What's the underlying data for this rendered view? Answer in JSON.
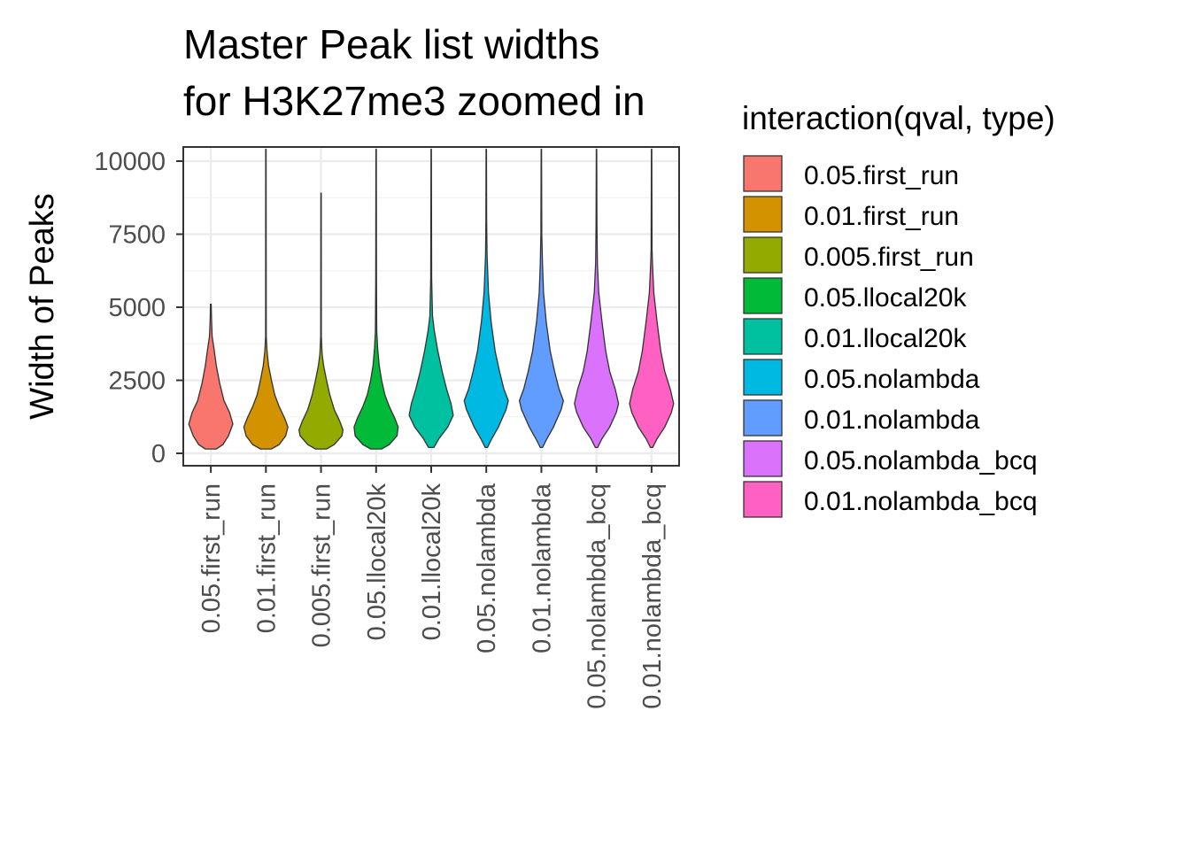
{
  "chart_data": {
    "type": "violin",
    "title_lines": [
      "Master Peak list widths",
      "for H3K27me3 zoomed in"
    ],
    "xlabel": "",
    "ylabel": "Width of Peaks",
    "ylim": [
      -500,
      10500
    ],
    "yticks": [
      0,
      2500,
      5000,
      7500,
      10000
    ],
    "ytick_labels": [
      "0",
      "2500",
      "5000",
      "7500",
      "10000"
    ],
    "grid": true,
    "legend": {
      "title": "interaction(qval, type)",
      "position": "right"
    },
    "categories": [
      "0.05.first_run",
      "0.01.first_run",
      "0.005.first_run",
      "0.05.llocal20k",
      "0.01.llocal20k",
      "0.05.nolambda",
      "0.01.nolambda",
      "0.05.nolambda_bcq",
      "0.01.nolambda_bcq"
    ],
    "series": [
      {
        "name": "0.05.first_run",
        "color": "#F8766D",
        "min": 150,
        "max": 5100,
        "profile": [
          [
            150,
            0.25
          ],
          [
            300,
            0.55
          ],
          [
            600,
            0.8
          ],
          [
            1000,
            1.0
          ],
          [
            1400,
            0.85
          ],
          [
            1800,
            0.6
          ],
          [
            2400,
            0.4
          ],
          [
            3000,
            0.25
          ],
          [
            3600,
            0.14
          ],
          [
            4000,
            0.06
          ],
          [
            4600,
            0.03
          ],
          [
            5100,
            0.015
          ]
        ]
      },
      {
        "name": "0.01.first_run",
        "color": "#D39200",
        "min": 150,
        "max": 10400,
        "profile": [
          [
            150,
            0.25
          ],
          [
            300,
            0.6
          ],
          [
            600,
            0.9
          ],
          [
            900,
            1.0
          ],
          [
            1200,
            0.85
          ],
          [
            1600,
            0.6
          ],
          [
            2000,
            0.4
          ],
          [
            2500,
            0.25
          ],
          [
            3000,
            0.12
          ],
          [
            3500,
            0.05
          ],
          [
            4000,
            0.015
          ],
          [
            10400,
            0.008
          ]
        ]
      },
      {
        "name": "0.005.first_run",
        "color": "#93AA00",
        "min": 150,
        "max": 8900,
        "profile": [
          [
            150,
            0.25
          ],
          [
            300,
            0.6
          ],
          [
            600,
            0.95
          ],
          [
            800,
            1.0
          ],
          [
            1100,
            0.85
          ],
          [
            1500,
            0.6
          ],
          [
            2000,
            0.4
          ],
          [
            2500,
            0.25
          ],
          [
            3000,
            0.12
          ],
          [
            3400,
            0.05
          ],
          [
            4000,
            0.015
          ],
          [
            8900,
            0.008
          ]
        ]
      },
      {
        "name": "0.05.llocal20k",
        "color": "#00BA38",
        "min": 150,
        "max": 10400,
        "profile": [
          [
            150,
            0.25
          ],
          [
            300,
            0.6
          ],
          [
            600,
            0.95
          ],
          [
            900,
            1.0
          ],
          [
            1200,
            0.85
          ],
          [
            1600,
            0.6
          ],
          [
            2000,
            0.4
          ],
          [
            2500,
            0.25
          ],
          [
            3000,
            0.14
          ],
          [
            3600,
            0.07
          ],
          [
            4200,
            0.03
          ],
          [
            6000,
            0.015
          ],
          [
            10400,
            0.008
          ]
        ]
      },
      {
        "name": "0.01.llocal20k",
        "color": "#00C19F",
        "min": 200,
        "max": 10400,
        "profile": [
          [
            200,
            0.12
          ],
          [
            500,
            0.35
          ],
          [
            900,
            0.75
          ],
          [
            1300,
            1.0
          ],
          [
            1700,
            0.9
          ],
          [
            2200,
            0.7
          ],
          [
            2800,
            0.5
          ],
          [
            3500,
            0.3
          ],
          [
            4200,
            0.14
          ],
          [
            4700,
            0.06
          ],
          [
            6000,
            0.02
          ],
          [
            10400,
            0.008
          ]
        ]
      },
      {
        "name": "0.05.nolambda",
        "color": "#00B9E3",
        "min": 200,
        "max": 10400,
        "profile": [
          [
            200,
            0.05
          ],
          [
            500,
            0.25
          ],
          [
            900,
            0.55
          ],
          [
            1500,
            0.9
          ],
          [
            1800,
            1.0
          ],
          [
            2200,
            0.8
          ],
          [
            2800,
            0.6
          ],
          [
            3500,
            0.4
          ],
          [
            4500,
            0.22
          ],
          [
            5500,
            0.1
          ],
          [
            6800,
            0.035
          ],
          [
            8000,
            0.015
          ],
          [
            10400,
            0.008
          ]
        ]
      },
      {
        "name": "0.01.nolambda",
        "color": "#619CFF",
        "min": 200,
        "max": 10400,
        "profile": [
          [
            200,
            0.05
          ],
          [
            500,
            0.25
          ],
          [
            900,
            0.55
          ],
          [
            1500,
            0.9
          ],
          [
            1800,
            1.0
          ],
          [
            2200,
            0.8
          ],
          [
            2800,
            0.6
          ],
          [
            3500,
            0.4
          ],
          [
            4500,
            0.22
          ],
          [
            5500,
            0.1
          ],
          [
            6500,
            0.05
          ],
          [
            7500,
            0.02
          ],
          [
            10400,
            0.008
          ]
        ]
      },
      {
        "name": "0.05.nolambda_bcq",
        "color": "#DB72FB",
        "min": 200,
        "max": 10400,
        "profile": [
          [
            200,
            0.05
          ],
          [
            500,
            0.25
          ],
          [
            900,
            0.6
          ],
          [
            1400,
            0.9
          ],
          [
            1700,
            1.0
          ],
          [
            2200,
            0.85
          ],
          [
            2800,
            0.6
          ],
          [
            3500,
            0.42
          ],
          [
            4500,
            0.25
          ],
          [
            5500,
            0.1
          ],
          [
            6500,
            0.04
          ],
          [
            7800,
            0.02
          ],
          [
            10400,
            0.008
          ]
        ]
      },
      {
        "name": "0.01.nolambda_bcq",
        "color": "#FF61C3",
        "min": 200,
        "max": 10400,
        "profile": [
          [
            200,
            0.05
          ],
          [
            500,
            0.25
          ],
          [
            900,
            0.6
          ],
          [
            1400,
            0.9
          ],
          [
            1700,
            1.0
          ],
          [
            2200,
            0.85
          ],
          [
            2800,
            0.6
          ],
          [
            3500,
            0.42
          ],
          [
            4500,
            0.25
          ],
          [
            5500,
            0.1
          ],
          [
            6500,
            0.04
          ],
          [
            7000,
            0.02
          ],
          [
            10400,
            0.008
          ]
        ]
      }
    ]
  }
}
